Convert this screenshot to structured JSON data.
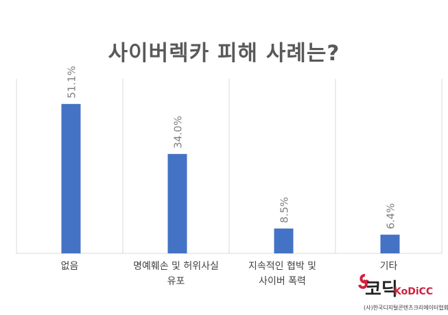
{
  "chart_data": {
    "type": "bar",
    "title": "사이버렉카 피해 사례는?",
    "categories": [
      "없음",
      "명예훼손 및 허위사실 유포",
      "지속적인 협박 및 사이버 폭력",
      "기타"
    ],
    "category_lines": [
      [
        "없음"
      ],
      [
        "명예훼손 및 허위사실",
        "유포"
      ],
      [
        "지속적인 협박 및",
        "사이버 폭력"
      ],
      [
        "기타"
      ]
    ],
    "values": [
      51.1,
      34.0,
      8.5,
      6.4
    ],
    "data_labels": [
      "51.1%",
      "34.0%",
      "8.5%",
      "6.4%"
    ],
    "unit": "%",
    "ylim": [
      0,
      60
    ],
    "grid": "vertical category separators",
    "bar_color": "#4472C4"
  },
  "logo": {
    "main": "코딕",
    "en": "KoDiCC",
    "sub": "(사)한국디지털콘텐츠크리에이터협회"
  }
}
